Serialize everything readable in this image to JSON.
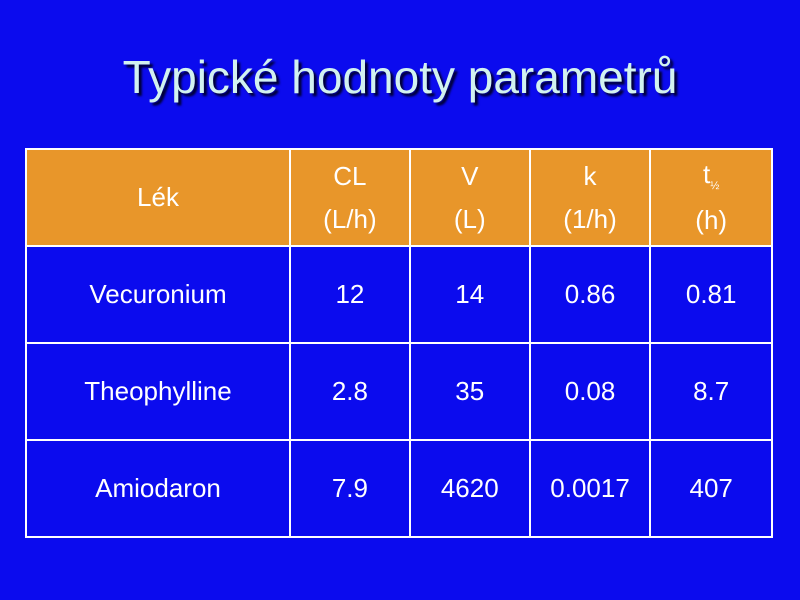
{
  "title": "Typické hodnoty parametrů",
  "table": {
    "header": [
      {
        "label": "Lék"
      },
      {
        "label": "CL",
        "unit": "(L/h)"
      },
      {
        "label": "V",
        "unit": "(L)"
      },
      {
        "label": "k",
        "unit": "(1/h)"
      },
      {
        "label": "t",
        "sub": "½",
        "unit": "(h)"
      }
    ],
    "rows": [
      [
        "Vecuronium",
        "12",
        "14",
        "0.86",
        "0.81"
      ],
      [
        "Theophylline",
        "2.8",
        "35",
        "0.08",
        "8.7"
      ],
      [
        "Amiodaron",
        "7.9",
        "4620",
        "0.0017",
        "407"
      ]
    ]
  }
}
